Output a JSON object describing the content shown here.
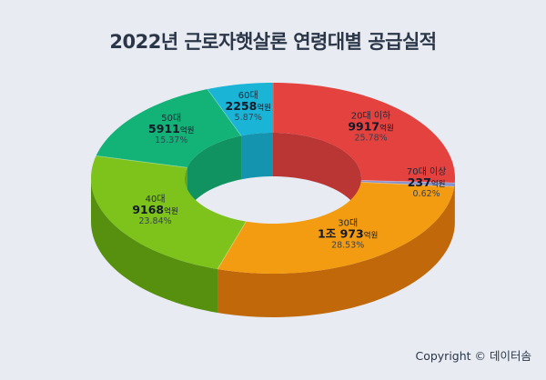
{
  "title": "2022년 근로자햇살론 연령대별 공급실적",
  "copyright": "Copyright © 데이터솜",
  "chart_data": {
    "type": "pie",
    "title": "2022년 근로자햇살론 연령대별 공급실적",
    "unit": "억원",
    "slices": [
      {
        "label": "20대 이하",
        "value": 9917,
        "value_text": "9917",
        "percent": "25.78%",
        "color": "#e3423f",
        "side": "#ad2421"
      },
      {
        "label": "70대 이상",
        "value": 237,
        "value_text": "237",
        "percent": "0.62%",
        "color": "#8a93c8",
        "side": "#5a6396"
      },
      {
        "label": "30대",
        "value": 10973,
        "value_text": "1조 973",
        "percent": "28.53%",
        "color": "#f39c12",
        "side": "#c0680a"
      },
      {
        "label": "40대",
        "value": 9168,
        "value_text": "9168",
        "percent": "23.84%",
        "color": "#7ec31b",
        "side": "#56900e"
      },
      {
        "label": "50대",
        "value": 5911,
        "value_text": "5911",
        "percent": "15.37%",
        "color": "#13b276",
        "side": "#0a8053"
      },
      {
        "label": "60대",
        "value": 2258,
        "value_text": "2258",
        "percent": "5.87%",
        "color": "#1ab4d6",
        "side": "#0e7d99"
      }
    ]
  }
}
